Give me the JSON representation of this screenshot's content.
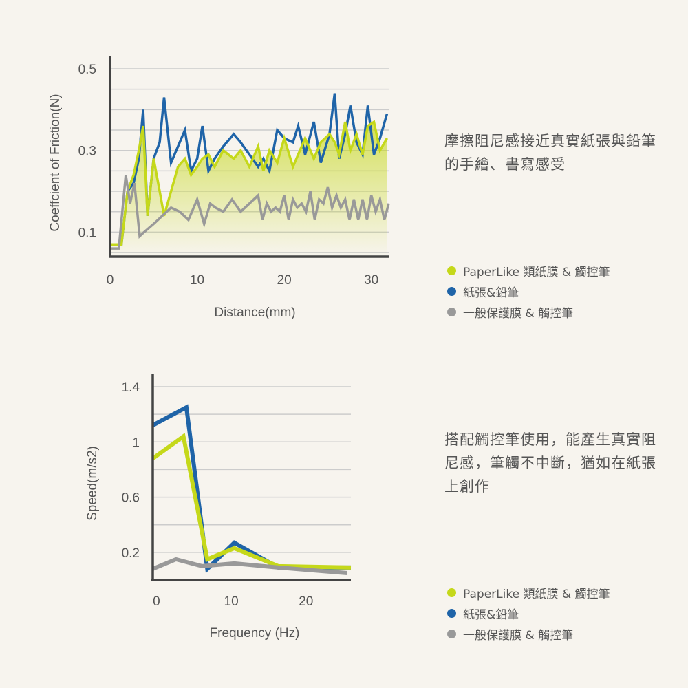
{
  "colors": {
    "green": "#c5d81a",
    "blue": "#1f64a8",
    "gray": "#999999",
    "axis": "#444444",
    "grid": "#cccccc",
    "background": "#f7f4ee"
  },
  "legend_labels": [
    "PaperLike 類紙膜 & 觸控筆",
    "紙張&鉛筆",
    "一般保護膜 & 觸控筆"
  ],
  "caption_top": "摩擦阻尼感接近真實紙張與鉛筆的手繪、書寫感受",
  "caption_bottom": "搭配觸控筆使用，能產生真實阻尼感，筆觸不中斷，猶如在紙張上創作",
  "chart_data": [
    {
      "type": "line",
      "title": "",
      "xlabel": "Distance(mm)",
      "ylabel": "Coeffcient of Friction(N)",
      "xlim": [
        0,
        32
      ],
      "ylim": [
        0.04,
        0.5
      ],
      "xticks": [
        0,
        10,
        20,
        30
      ],
      "yticks": [
        0.1,
        0.3,
        0.5
      ],
      "ytick_labels": [
        "0.1",
        "0.3",
        "0.5"
      ],
      "grid": true,
      "legend_position": "right",
      "series": [
        {
          "name": "紙張&鉛筆",
          "color": "#1f64a8",
          "x": [
            0,
            1.3,
            2,
            2.7,
            3.3,
            3.8,
            4.3,
            5,
            5.7,
            6.2,
            7,
            7.8,
            8.6,
            9.3,
            10,
            10.6,
            11.3,
            12,
            13,
            14.2,
            15,
            16,
            17,
            17.6,
            18.3,
            19.2,
            20,
            21,
            21.6,
            22.4,
            23.4,
            24.2,
            25.2,
            25.8,
            26.3,
            27,
            27.6,
            28.3,
            29,
            29.6,
            30.3,
            31,
            31.8
          ],
          "y": [
            0.07,
            0.07,
            0.2,
            0.22,
            0.28,
            0.4,
            0.14,
            0.28,
            0.32,
            0.43,
            0.27,
            0.31,
            0.35,
            0.25,
            0.28,
            0.36,
            0.25,
            0.28,
            0.31,
            0.34,
            0.32,
            0.29,
            0.26,
            0.28,
            0.25,
            0.35,
            0.33,
            0.32,
            0.36,
            0.29,
            0.37,
            0.27,
            0.34,
            0.44,
            0.28,
            0.34,
            0.41,
            0.32,
            0.29,
            0.41,
            0.29,
            0.33,
            0.39
          ]
        },
        {
          "name": "PaperLike 類紙膜 & 觸控筆",
          "color": "#c5d81a",
          "x": [
            0,
            1.3,
            2,
            2.7,
            3.3,
            3.8,
            4.3,
            5,
            5.7,
            6.2,
            7,
            7.8,
            8.6,
            9.3,
            10,
            10.6,
            11.3,
            12,
            13,
            14.2,
            15,
            16,
            17,
            17.6,
            18.3,
            19.2,
            20,
            21,
            21.6,
            22.4,
            23.4,
            24.2,
            25.2,
            25.8,
            26.3,
            27,
            27.6,
            28.3,
            29,
            29.6,
            30.3,
            31,
            31.8
          ],
          "y": [
            0.07,
            0.07,
            0.2,
            0.24,
            0.3,
            0.36,
            0.14,
            0.28,
            0.2,
            0.14,
            0.2,
            0.26,
            0.28,
            0.24,
            0.26,
            0.28,
            0.29,
            0.26,
            0.3,
            0.28,
            0.3,
            0.26,
            0.31,
            0.25,
            0.3,
            0.27,
            0.33,
            0.26,
            0.29,
            0.33,
            0.28,
            0.32,
            0.34,
            0.32,
            0.29,
            0.37,
            0.3,
            0.34,
            0.29,
            0.36,
            0.37,
            0.3,
            0.33
          ]
        },
        {
          "name": "一般保護膜 & 觸控筆",
          "color": "#999999",
          "x": [
            0,
            1,
            1.8,
            2.3,
            2.8,
            3.4,
            3.9,
            5,
            6,
            7,
            8,
            9,
            10,
            10.8,
            11.5,
            12.1,
            13,
            14,
            15,
            16,
            17,
            17.5,
            18,
            18.5,
            19,
            19.5,
            20,
            20.5,
            21,
            21.5,
            22,
            22.5,
            23,
            23.5,
            24,
            24.5,
            25,
            25.5,
            26,
            26.5,
            27,
            27.5,
            28,
            28.5,
            29,
            29.5,
            30,
            30.5,
            31,
            31.5,
            32
          ],
          "y": [
            0.06,
            0.06,
            0.24,
            0.17,
            0.22,
            0.09,
            0.1,
            0.12,
            0.14,
            0.16,
            0.15,
            0.13,
            0.18,
            0.12,
            0.17,
            0.16,
            0.15,
            0.18,
            0.15,
            0.17,
            0.19,
            0.13,
            0.17,
            0.15,
            0.16,
            0.15,
            0.19,
            0.13,
            0.18,
            0.16,
            0.17,
            0.15,
            0.2,
            0.13,
            0.18,
            0.17,
            0.21,
            0.16,
            0.19,
            0.16,
            0.18,
            0.13,
            0.18,
            0.13,
            0.18,
            0.13,
            0.19,
            0.15,
            0.18,
            0.13,
            0.17
          ]
        }
      ]
    },
    {
      "type": "line",
      "title": "",
      "xlabel": "Frequency (Hz)",
      "ylabel": "Speed(m/s2)",
      "xlim": [
        -0.5,
        26
      ],
      "ylim": [
        0,
        1.4
      ],
      "xticks": [
        0,
        10,
        20
      ],
      "yticks": [
        0.2,
        0.6,
        1,
        1.4
      ],
      "ytick_labels": [
        "0.2",
        "0.6",
        "1",
        "1.4"
      ],
      "grid": true,
      "legend_position": "right",
      "series": [
        {
          "name": "紙張&鉛筆",
          "color": "#1f64a8",
          "x": [
            -0.5,
            4,
            6.8,
            10.4,
            16.3,
            26
          ],
          "y": [
            1.12,
            1.25,
            0.08,
            0.27,
            0.09,
            0.09
          ]
        },
        {
          "name": "PaperLike 類紙膜 & 觸控筆",
          "color": "#c5d81a",
          "x": [
            -0.5,
            3.6,
            6.8,
            10.4,
            16.3,
            26
          ],
          "y": [
            0.88,
            1.04,
            0.15,
            0.23,
            0.1,
            0.09
          ]
        },
        {
          "name": "一般保護膜 & 觸控筆",
          "color": "#999999",
          "x": [
            -0.5,
            2.6,
            6.1,
            10.4,
            16.3,
            25.5
          ],
          "y": [
            0.08,
            0.15,
            0.1,
            0.12,
            0.09,
            0.05
          ]
        }
      ]
    }
  ]
}
